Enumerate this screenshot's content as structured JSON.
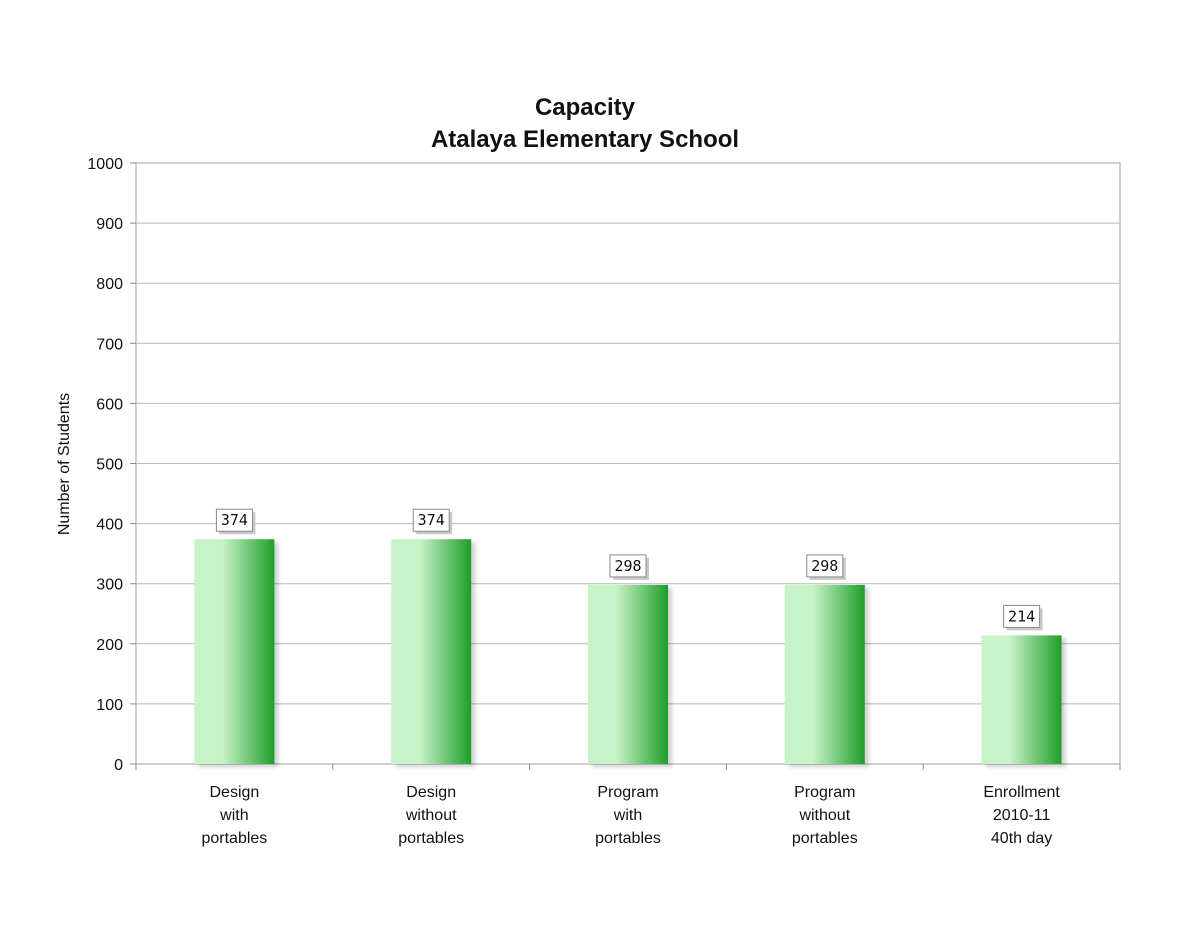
{
  "chart_data": {
    "type": "bar",
    "title": [
      "Capacity",
      "Atalaya Elementary School"
    ],
    "ylabel": "Number of Students",
    "xlabel": "",
    "ylim": [
      0,
      1000
    ],
    "yticks": [
      0,
      100,
      200,
      300,
      400,
      500,
      600,
      700,
      800,
      900,
      1000
    ],
    "grid": true,
    "legend": "none",
    "categories": [
      [
        "Design",
        "with",
        "portables"
      ],
      [
        "Design",
        "without",
        "portables"
      ],
      [
        "Program",
        "with",
        "portables"
      ],
      [
        "Program",
        "without",
        "portables"
      ],
      [
        "Enrollment",
        "2010-11",
        "40th day"
      ]
    ],
    "values": [
      374,
      374,
      298,
      298,
      214
    ],
    "data_labels": [
      "374",
      "374",
      "298",
      "298",
      "214"
    ],
    "colors": {
      "bar_light": "#c8f2c8",
      "bar_dark": "#1e9e2a",
      "grid": "#b8b8b8",
      "axis": "#888888"
    }
  }
}
